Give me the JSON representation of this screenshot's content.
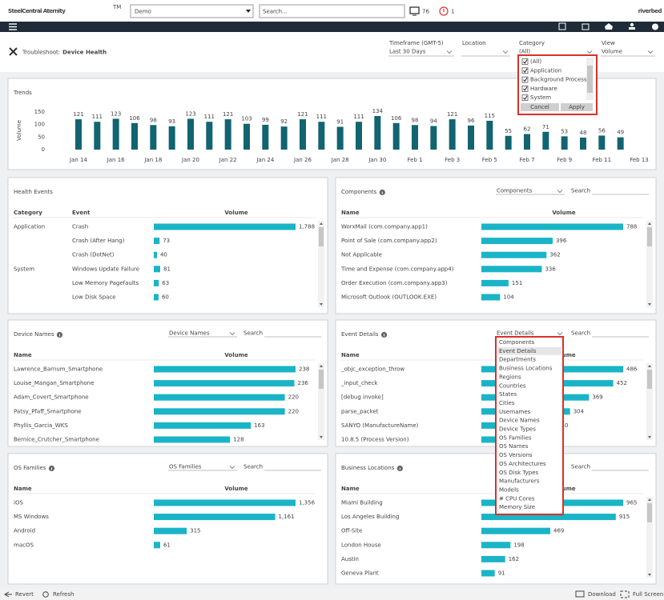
{
  "topbar": {
    "brand": "SteelCentral Aternity",
    "trademark": "TM",
    "dataset": "Demo",
    "search_placeholder": "Search...",
    "monitor_count": 76,
    "alert_count": 1,
    "vendor": "riverbed"
  },
  "header": {
    "prefix": "Troubleshoot:",
    "title": "Device Health",
    "filters": [
      {
        "label": "Timeframe (GMT-5)",
        "value": "Last 30 Days"
      },
      {
        "label": "Location"
      },
      {
        "label": "Category",
        "value": "(All)"
      },
      {
        "label": "View",
        "value": "Volume"
      }
    ],
    "category_menu": {
      "options": [
        "(All)",
        "Application",
        "Background Process",
        "Hardware",
        "System"
      ],
      "cancel": "Cancel",
      "apply": "Apply"
    }
  },
  "chart_data": {
    "type": "bar",
    "title": "Trends",
    "y_label": "Volume",
    "color": "#116470",
    "categories": [
      "Jan 14",
      null,
      "Jan 16",
      null,
      "Jan 18",
      null,
      "Jan 20",
      null,
      "Jan 22",
      null,
      "Jan 24",
      null,
      "Jan 26",
      null,
      "Jan 28",
      null,
      "Jan 30",
      null,
      "Feb 1",
      null,
      "Feb 3",
      null,
      "Feb 5",
      null,
      "Feb 7",
      null,
      "Feb 9",
      null,
      "Feb 11",
      null,
      "Feb 13"
    ],
    "values": [
      121,
      111,
      123,
      106,
      98,
      93,
      123,
      111,
      121,
      103,
      99,
      92,
      121,
      111,
      91,
      111,
      134,
      106,
      98,
      94,
      121,
      96,
      115,
      55,
      62,
      71,
      53,
      48,
      56,
      49,
      null
    ],
    "ylim": [
      0,
      150
    ],
    "yticks": [
      0,
      50,
      100,
      150
    ],
    "grid": false
  },
  "panels": [
    {
      "title": "Health Events",
      "info_icon": false,
      "scrollable": true,
      "columns": [
        "Category",
        "Event",
        "Volume"
      ],
      "rows": [
        {
          "category": "Application",
          "name": "Crash",
          "volume": 1788,
          "volume_label": "1,788"
        },
        {
          "name": "Crash (After Hang)",
          "volume": 73
        },
        {
          "name": "Crash (DotNet)",
          "volume": 40
        },
        {
          "category": "System",
          "name": "Windows Update Failure",
          "volume": 81
        },
        {
          "name": "Low Memory Pagefaults",
          "volume": 63
        },
        {
          "name": "Low Disk Space",
          "volume": 60
        }
      ]
    },
    {
      "title": "Components",
      "info_icon": true,
      "selector": "Components",
      "search_label": "Search",
      "scrollable": true,
      "columns": [
        "Name",
        "Volume"
      ],
      "rows": [
        {
          "name": "WorxMail (com.company.app1)",
          "volume": 788
        },
        {
          "name": "Point of Sale (com.company.app2)",
          "volume": 396
        },
        {
          "name": "Not Applicable",
          "volume": 362
        },
        {
          "name": "Time and Expense (com.company.app4)",
          "volume": 336
        },
        {
          "name": "Order Execution (com.company.app3)",
          "volume": 151
        },
        {
          "name": "Microsoft Outlook (OUTLOOK.EXE)",
          "volume": 104
        }
      ]
    },
    {
      "title": "Device Names",
      "info_icon": true,
      "selector": "Device Names",
      "search_label": "Search",
      "scrollable": true,
      "columns": [
        "Name",
        "Volume"
      ],
      "rows": [
        {
          "name": "Lawrence_Barnum_Smartphone",
          "volume": 238
        },
        {
          "name": "Louise_Mangan_Smartphone",
          "volume": 236
        },
        {
          "name": "Adam_Covert_Smartphone",
          "volume": 220
        },
        {
          "name": "Patsy_Pfaff_Smartphone",
          "volume": 220
        },
        {
          "name": "Phyllis_Garcia_WKS",
          "volume": 163
        },
        {
          "name": "Bernice_Crutcher_Smartphone",
          "volume": 128
        }
      ]
    },
    {
      "title": "Event Details",
      "info_icon": true,
      "selector": "Event Details",
      "search_label": "Search",
      "scrollable": true,
      "columns": [
        "Name",
        "Volume"
      ],
      "rows": [
        {
          "name": "_objc_exception_throw",
          "volume": 486
        },
        {
          "name": "_input_check",
          "volume": 452
        },
        {
          "name": "[debug invoke]",
          "volume": 369
        },
        {
          "name": "parse_packet",
          "volume": 304
        },
        {
          "name": "SANYO (ManufactureName)",
          "volume": 250
        },
        {
          "name": "10.8.5 (Process Version)",
          "volume": 220
        }
      ]
    },
    {
      "title": "OS Families",
      "info_icon": true,
      "selector": "OS Families",
      "search_label": "Search",
      "scrollable": false,
      "columns": [
        "Name",
        "Volume"
      ],
      "rows": [
        {
          "name": "iOS",
          "volume": 1356,
          "volume_label": "1,356"
        },
        {
          "name": "MS Windows",
          "volume": 1161,
          "volume_label": "1,161"
        },
        {
          "name": "Android",
          "volume": 315
        },
        {
          "name": "macOS",
          "volume": 61
        }
      ]
    },
    {
      "title": "Business Locations",
      "info_icon": true,
      "search_label": "Search",
      "scrollable": true,
      "columns": [
        "Name",
        "Volume"
      ],
      "rows": [
        {
          "name": "Miami Building",
          "volume": 965
        },
        {
          "name": "Los Angeles Building",
          "volume": 915
        },
        {
          "name": "Off-Site",
          "volume": 469
        },
        {
          "name": "London House",
          "volume": 198
        },
        {
          "name": "Austin",
          "volume": 162
        },
        {
          "name": "Geneva Plant",
          "volume": 91
        }
      ]
    }
  ],
  "group_by_menu": {
    "selected": 1,
    "options": [
      "Components",
      "Event Details",
      "Departments",
      "Business Locations",
      "Regions",
      "Countries",
      "States",
      "Cities",
      "Usernames",
      "Device Names",
      "Device Types",
      "OS Families",
      "OS Names",
      "OS Versions",
      "OS Architectures",
      "OS Disk Types",
      "Manufacturers",
      "Models",
      "# CPU Cores",
      "Memory Size"
    ]
  },
  "footer": {
    "revert": "Revert",
    "refresh": "Refresh",
    "download": "Download",
    "full_screen": "Full Screen"
  }
}
